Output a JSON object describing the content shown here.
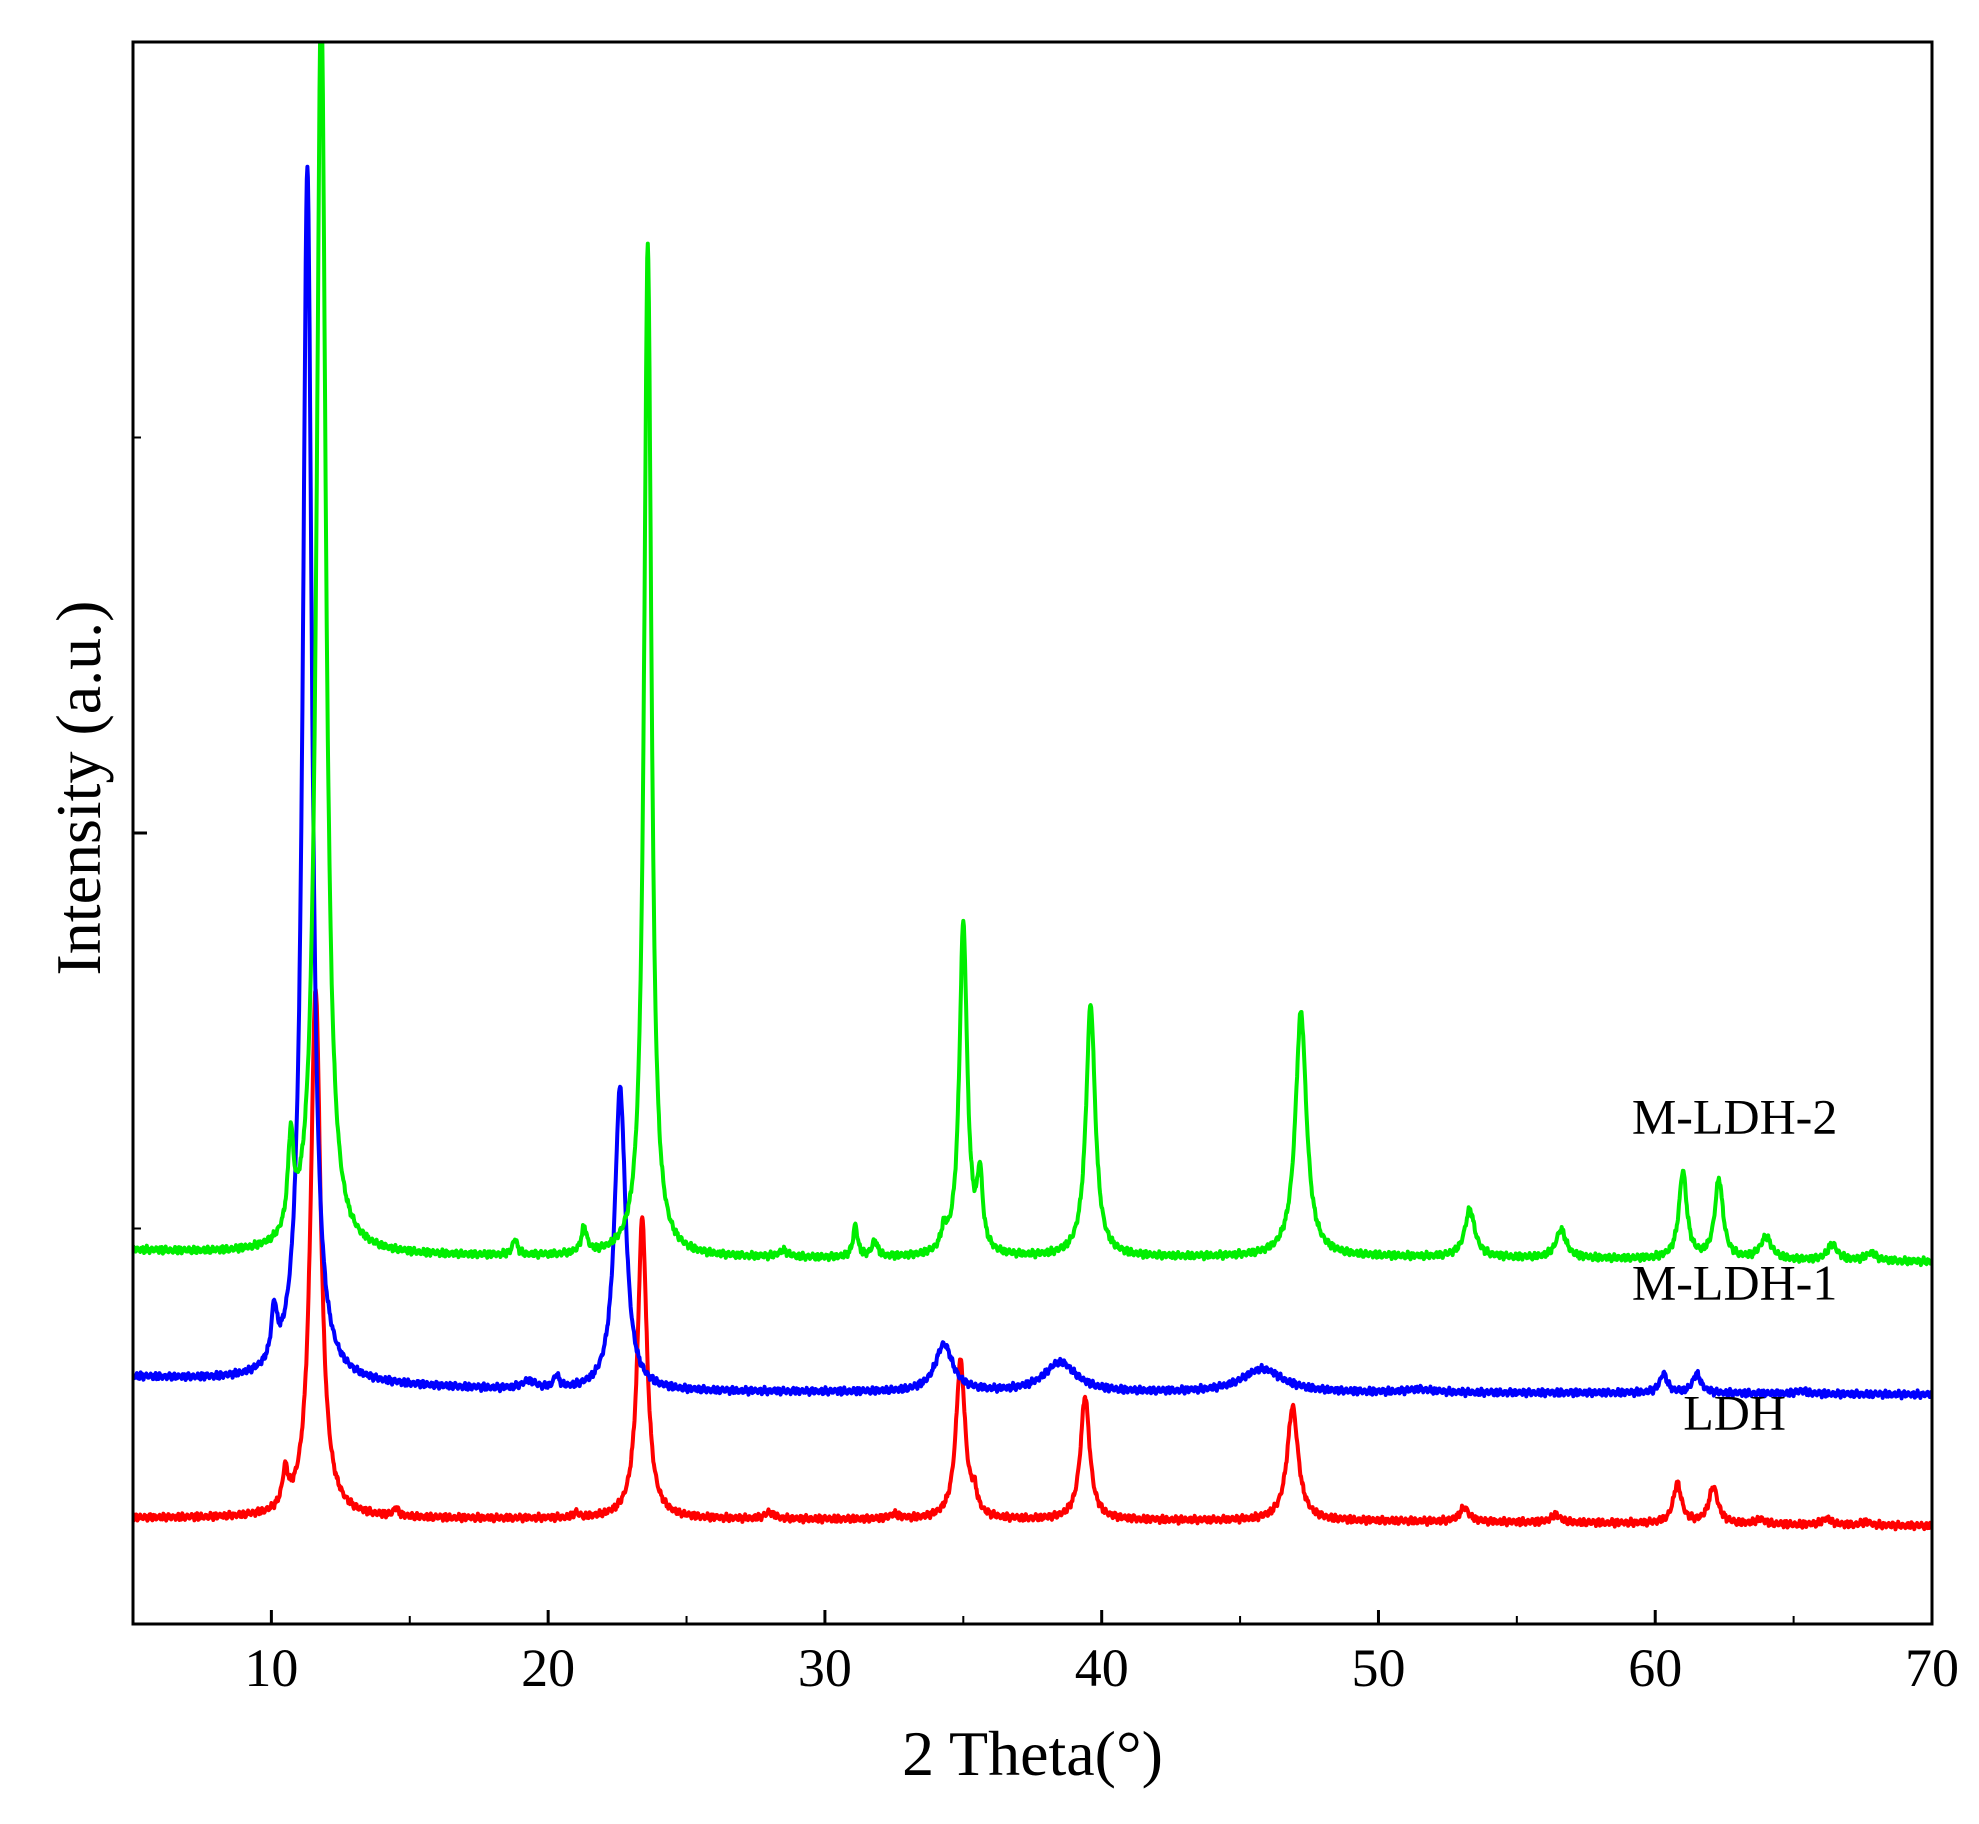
{
  "chart_data": {
    "type": "line",
    "title": "",
    "xlabel": "2 Theta(°)",
    "ylabel": "Intensity (a.u.)",
    "xlim": [
      5,
      70
    ],
    "ylim": [
      0,
      100
    ],
    "x_ticks": [
      10,
      20,
      30,
      40,
      50,
      60,
      70
    ],
    "x_tick_labels": [
      "10",
      "20",
      "30",
      "40",
      "50",
      "60",
      "70"
    ],
    "y_tick_labels": [],
    "grid": false,
    "legend": "none",
    "series": [
      {
        "name": "LDH",
        "color": "#ff0000",
        "label_at": [
          62,
          12.3
        ],
        "baseline": [
          [
            5,
            6.7
          ],
          [
            30,
            6.6
          ],
          [
            50,
            6.5
          ],
          [
            70,
            6.2
          ]
        ],
        "peaks": [
          {
            "x": 10.5,
            "h": 2.2,
            "w": 0.12
          },
          {
            "x": 11.6,
            "h": 33.5,
            "w": 0.22
          },
          {
            "x": 14.5,
            "h": 0.5,
            "w": 0.1
          },
          {
            "x": 21.0,
            "h": 0.3,
            "w": 0.1
          },
          {
            "x": 23.4,
            "h": 19.0,
            "w": 0.2
          },
          {
            "x": 28.0,
            "h": 0.4,
            "w": 0.2
          },
          {
            "x": 32.5,
            "h": 0.3,
            "w": 0.2
          },
          {
            "x": 34.9,
            "h": 10.0,
            "w": 0.2
          },
          {
            "x": 35.4,
            "h": 1.2,
            "w": 0.12
          },
          {
            "x": 39.4,
            "h": 7.8,
            "w": 0.2
          },
          {
            "x": 46.9,
            "h": 7.2,
            "w": 0.24
          },
          {
            "x": 53.1,
            "h": 0.9,
            "w": 0.2
          },
          {
            "x": 56.4,
            "h": 0.5,
            "w": 0.2
          },
          {
            "x": 60.8,
            "h": 2.5,
            "w": 0.18
          },
          {
            "x": 62.1,
            "h": 2.3,
            "w": 0.2
          },
          {
            "x": 63.8,
            "h": 0.3,
            "w": 0.2
          },
          {
            "x": 66.2,
            "h": 0.4,
            "w": 0.2
          },
          {
            "x": 67.6,
            "h": 0.2,
            "w": 0.2
          }
        ]
      },
      {
        "name": "M-LDH-1",
        "color": "#0000ff",
        "label_at": [
          62,
          20.5
        ],
        "baseline": [
          [
            5,
            15.6
          ],
          [
            11,
            15.2
          ],
          [
            20,
            14.7
          ],
          [
            40,
            14.6
          ],
          [
            60,
            14.6
          ],
          [
            70,
            14.5
          ]
        ],
        "peaks": [
          {
            "x": 10.1,
            "h": 3.2,
            "w": 0.12
          },
          {
            "x": 11.3,
            "h": 77.0,
            "w": 0.2
          },
          {
            "x": 19.3,
            "h": 0.5,
            "w": 0.3
          },
          {
            "x": 20.3,
            "h": 0.8,
            "w": 0.12
          },
          {
            "x": 22.6,
            "h": 19.2,
            "w": 0.24
          },
          {
            "x": 34.3,
            "h": 3.0,
            "w": 0.38
          },
          {
            "x": 38.5,
            "h": 1.9,
            "w": 0.7
          },
          {
            "x": 45.8,
            "h": 1.5,
            "w": 0.9
          },
          {
            "x": 51.5,
            "h": 0.2,
            "w": 0.6
          },
          {
            "x": 60.3,
            "h": 1.2,
            "w": 0.16
          },
          {
            "x": 61.5,
            "h": 1.2,
            "w": 0.18
          },
          {
            "x": 65.3,
            "h": 0.2,
            "w": 0.2
          }
        ]
      },
      {
        "name": "M-LDH-2",
        "color": "#00ee00",
        "label_at": [
          62,
          31.0
        ],
        "baseline": [
          [
            5,
            23.6
          ],
          [
            10,
            23.3
          ],
          [
            30,
            23.1
          ],
          [
            50,
            23.2
          ],
          [
            70,
            22.9
          ]
        ],
        "peaks": [
          {
            "x": 10.7,
            "h": 5.8,
            "w": 0.12
          },
          {
            "x": 11.8,
            "h": 80.0,
            "w": 0.2
          },
          {
            "x": 18.8,
            "h": 1.0,
            "w": 0.1
          },
          {
            "x": 21.3,
            "h": 1.6,
            "w": 0.12
          },
          {
            "x": 23.6,
            "h": 64.0,
            "w": 0.16
          },
          {
            "x": 28.5,
            "h": 0.4,
            "w": 0.2
          },
          {
            "x": 31.1,
            "h": 2.0,
            "w": 0.1
          },
          {
            "x": 31.8,
            "h": 1.0,
            "w": 0.12
          },
          {
            "x": 34.3,
            "h": 1.2,
            "w": 0.12
          },
          {
            "x": 35.0,
            "h": 21.0,
            "w": 0.17
          },
          {
            "x": 35.6,
            "h": 4.5,
            "w": 0.12
          },
          {
            "x": 39.6,
            "h": 16.0,
            "w": 0.2
          },
          {
            "x": 47.2,
            "h": 15.5,
            "w": 0.24
          },
          {
            "x": 53.3,
            "h": 3.0,
            "w": 0.22
          },
          {
            "x": 56.6,
            "h": 1.8,
            "w": 0.22
          },
          {
            "x": 61.0,
            "h": 5.5,
            "w": 0.17
          },
          {
            "x": 62.3,
            "h": 5.0,
            "w": 0.18
          },
          {
            "x": 64.0,
            "h": 1.4,
            "w": 0.25
          },
          {
            "x": 66.4,
            "h": 1.0,
            "w": 0.22
          },
          {
            "x": 67.8,
            "h": 0.5,
            "w": 0.22
          }
        ]
      }
    ]
  }
}
